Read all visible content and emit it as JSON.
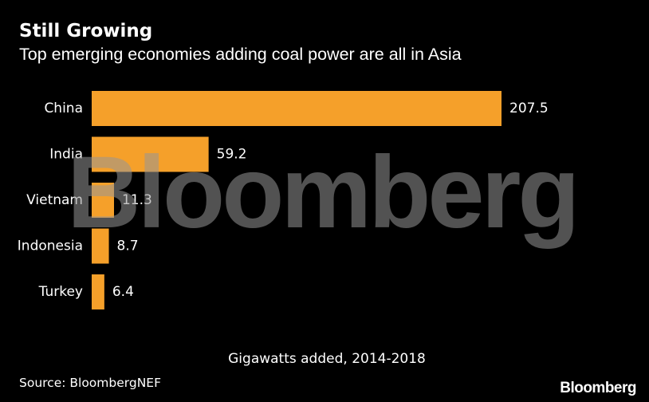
{
  "chart_data": {
    "type": "bar",
    "orientation": "horizontal",
    "title": "Still Growing",
    "subtitle": "Top emerging economies adding coal power are all in Asia",
    "categories": [
      "China",
      "India",
      "Vietnam",
      "Indonesia",
      "Turkey"
    ],
    "values": [
      207.5,
      59.2,
      11.3,
      8.7,
      6.4
    ],
    "value_labels": [
      "207.5",
      "59.2",
      "11.3",
      "8.7",
      "6.4"
    ],
    "xlabel": "Gigawatts added, 2014-2018",
    "ylabel": "",
    "xlim": [
      0,
      207.5
    ],
    "grid": false,
    "legend": "none",
    "bar_color": "#F5A02A",
    "background_color": "#000000",
    "text_color": "#FFFFFF"
  },
  "source": "Source: BloombergNEF",
  "watermark": "Bloomberg",
  "brand": "Bloomberg"
}
